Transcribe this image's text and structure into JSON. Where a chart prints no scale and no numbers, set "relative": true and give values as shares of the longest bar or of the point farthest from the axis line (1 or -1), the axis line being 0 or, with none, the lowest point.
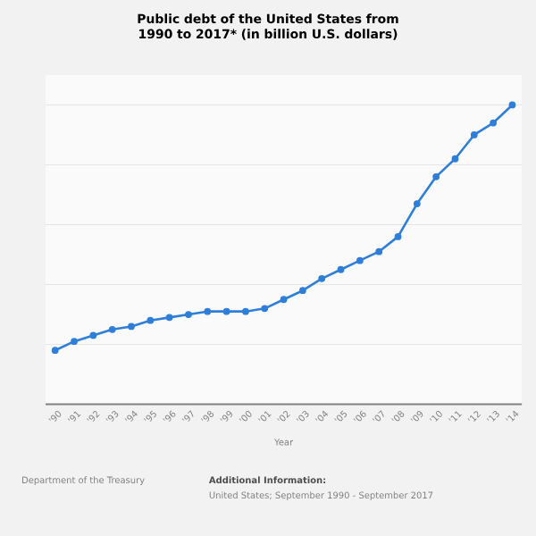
{
  "chart_data": {
    "type": "line",
    "title": "Public debt of the United States from 1990 to 2017* (in billion U.S. dollars)",
    "xlabel": "Year",
    "categories": [
      "'90",
      "'91",
      "'92",
      "'93",
      "'94",
      "'95",
      "'96",
      "'97",
      "'98",
      "'99",
      "'00",
      "'01",
      "'02",
      "'03",
      "'04",
      "'05",
      "'06",
      "'07",
      "'08",
      "'09",
      "'10",
      "'11",
      "'12",
      "'13",
      "'14"
    ],
    "series": [
      {
        "color": "#2f7ed8",
        "values": [
          0.18,
          0.21,
          0.23,
          0.25,
          0.26,
          0.28,
          0.29,
          0.3,
          0.31,
          0.31,
          0.31,
          0.32,
          0.35,
          0.38,
          0.42,
          0.45,
          0.48,
          0.51,
          0.56,
          0.67,
          0.76,
          0.82,
          0.9,
          0.94,
          1.0
        ]
      }
    ],
    "relative": true,
    "grid": "y",
    "marker": "circle",
    "line_style": "solid",
    "legend": false,
    "annotations": [
      "Department of the Treasury",
      "Additional Information:",
      "United States; September 1990 - September 2017"
    ]
  }
}
